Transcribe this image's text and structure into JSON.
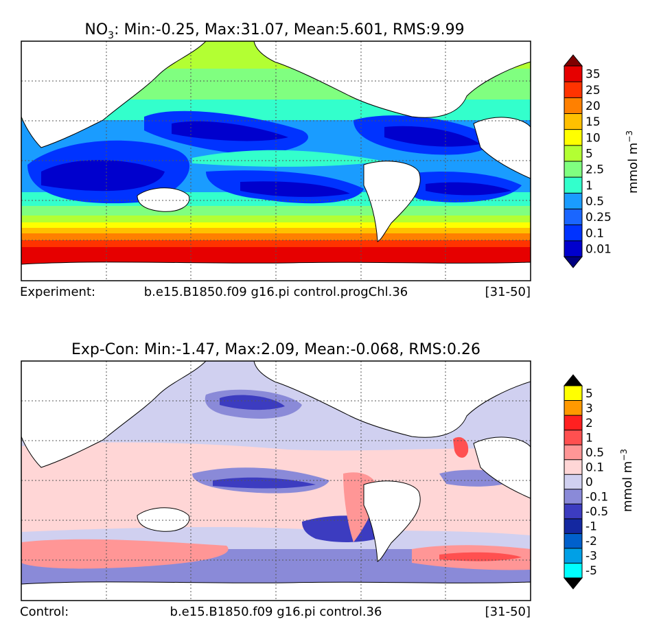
{
  "panels": [
    {
      "title_main": "NO",
      "title_sub": "3",
      "title_rest": ": Min:-0.25, Max:31.07, Mean:5.601, RMS:9.99",
      "caption_label": "Experiment:",
      "caption_case": "b.e15.B1850.f09 g16.pi control.progChl.36",
      "caption_years": "[31-50]",
      "colorbar_label": "mmol m",
      "colorbar_exp": "−3"
    },
    {
      "title": "Exp-Con: Min:-1.47, Max:2.09, Mean:-0.068, RMS:0.26",
      "caption_label": "Control:",
      "caption_case": "b.e15.B1850.f09 g16.pi control.36",
      "caption_years": "[31-50]",
      "colorbar_label": "mmol m",
      "colorbar_exp": "−3"
    }
  ],
  "chart_data": [
    {
      "type": "heatmap",
      "title": "NO3: Min:-0.25, Max:31.07, Mean:5.601, RMS:9.99",
      "variable": "NO3",
      "units": "mmol m-3",
      "stats": {
        "min": -0.25,
        "max": 31.07,
        "mean": 5.601,
        "rms": 9.99
      },
      "colorbar_ticks": [
        "0.01",
        "0.1",
        "0.25",
        "0.5",
        "1",
        "2.5",
        "5",
        "10",
        "15",
        "20",
        "25",
        "35"
      ],
      "colors": [
        "#000080",
        "#0000cd",
        "#0033ff",
        "#1a66ff",
        "#1a9cff",
        "#33ffcc",
        "#80ff80",
        "#b3ff33",
        "#ffff00",
        "#ffc000",
        "#ff8000",
        "#ff3300",
        "#e60000",
        "#800000"
      ]
    },
    {
      "type": "heatmap",
      "title": "Exp-Con: Min:-1.47, Max:2.09, Mean:-0.068, RMS:0.26",
      "units": "mmol m-3",
      "stats": {
        "min": -1.47,
        "max": 2.09,
        "mean": -0.068,
        "rms": 0.26
      },
      "colorbar_ticks": [
        "-5",
        "-3",
        "-2",
        "-1",
        "-0.5",
        "-0.1",
        "0",
        "0.1",
        "0.5",
        "1",
        "2",
        "3",
        "5"
      ],
      "colors": [
        "#000000",
        "#00ffff",
        "#00a0e6",
        "#0060cc",
        "#1428a0",
        "#3c3cc0",
        "#8a8ad8",
        "#d0d0f0",
        "#ffd6d6",
        "#ff9696",
        "#ff5050",
        "#ff2020",
        "#ff9900",
        "#ffff00",
        "#000000"
      ]
    }
  ]
}
